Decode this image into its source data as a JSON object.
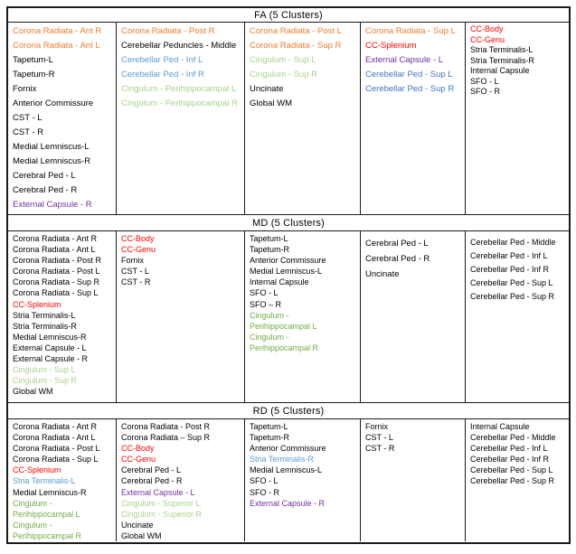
{
  "colors": {
    "black": "#000000",
    "orange": "#ED7D31",
    "red": "#FF0000",
    "purple": "#7030A0",
    "blue": "#4472C4",
    "light_blue": "#5B9BD5",
    "green": "#70AD47",
    "light_green": "#A9D18E"
  },
  "sections": [
    {
      "title": "FA (5 Clusters)",
      "columns": [
        {
          "spacing": "airy",
          "items": [
            {
              "label": "Corona Radiata - Ant R",
              "color": "orange"
            },
            {
              "label": "Corona Radiata - Ant L",
              "color": "orange"
            },
            {
              "label": "Tapetum-L"
            },
            {
              "label": "Tapetum-R"
            },
            {
              "label": "Fornix"
            },
            {
              "label": "Anterior Commissure"
            },
            {
              "label": "CST - L"
            },
            {
              "label": "CST - R"
            },
            {
              "label": "Medial Lemniscus-L"
            },
            {
              "label": "Medial Lemniscus-R"
            },
            {
              "label": "Cerebral Ped - L"
            },
            {
              "label": "Cerebral Ped - R"
            },
            {
              "label": "External Capsule - R",
              "color": "purple"
            }
          ]
        },
        {
          "spacing": "airy",
          "items": [
            {
              "label": "Corona Radiata - Post R",
              "color": "orange"
            },
            {
              "label": "Cerebellar Peduncles - Middle"
            },
            {
              "label": "Cerebellar Ped - Inf L",
              "color": "light_blue"
            },
            {
              "label": "Cerebellar Ped - Inf R",
              "color": "light_blue"
            },
            {
              "label": "Cingulum - Perihippocampal L",
              "color": "light_green"
            },
            {
              "label": "Cingulum - Perihippocampal R",
              "color": "light_green"
            }
          ]
        },
        {
          "spacing": "airy",
          "items": [
            {
              "label": "Corona Radiata - Post L",
              "color": "orange"
            },
            {
              "label": "Corona Radiata - Sup R",
              "color": "orange"
            },
            {
              "label": "Cingulum - Sup L",
              "color": "light_green"
            },
            {
              "label": "Cingulum - Sup R",
              "color": "light_green"
            },
            {
              "label": "Uncinate"
            },
            {
              "label": "Global WM"
            }
          ]
        },
        {
          "spacing": "airy",
          "items": [
            {
              "label": "Corona Radiata - Sup L",
              "color": "orange"
            },
            {
              "label": "CC-Splenium",
              "color": "red"
            },
            {
              "label": "External Capsule - L",
              "color": "purple"
            },
            {
              "label": "Cerebellar Ped - Sup L",
              "color": "blue"
            },
            {
              "label": "Cerebellar Ped - Sup R",
              "color": "blue"
            }
          ]
        },
        {
          "spacing": "compact",
          "items": [
            {
              "label": "CC-Body",
              "color": "red"
            },
            {
              "label": "CC-Genu",
              "color": "red"
            },
            {
              "label": "Stria Terminalis-L"
            },
            {
              "label": "Stria Terminalis-R"
            },
            {
              "label": "Internal Capsule"
            },
            {
              "label": "SFO - L"
            },
            {
              "label": "SFO - R"
            }
          ]
        }
      ]
    },
    {
      "title": "MD (5 Clusters)",
      "columns": [
        {
          "spacing": "tight",
          "items": [
            {
              "label": "Corona Radiata - Ant R"
            },
            {
              "label": "Corona Radiata - Ant L"
            },
            {
              "label": "Corona Radiata - Post R"
            },
            {
              "label": "Corona Radiata - Post L"
            },
            {
              "label": "Corona Radiata - Sup R"
            },
            {
              "label": "Corona Radiata - Sup L"
            },
            {
              "label": "CC-Splenium",
              "color": "red"
            },
            {
              "label": "Stria Terminalis-L"
            },
            {
              "label": "Stria Terminalis-R"
            },
            {
              "label": "Medial Lemniscus-R"
            },
            {
              "label": "External Capsule - L"
            },
            {
              "label": "External Capsule - R"
            },
            {
              "label": "Cingulum - Sup L",
              "color": "light_green"
            },
            {
              "label": "Cingulum - Sup R",
              "color": "light_green"
            },
            {
              "label": "Global WM"
            }
          ]
        },
        {
          "spacing": "tight",
          "items": [
            {
              "label": "CC-Body",
              "color": "red"
            },
            {
              "label": "CC-Genu",
              "color": "red"
            },
            {
              "label": "Fornix"
            },
            {
              "label": "CST - L"
            },
            {
              "label": "CST - R"
            }
          ]
        },
        {
          "spacing": "tight",
          "items": [
            {
              "label": "Tapetum-L"
            },
            {
              "label": "Tapetum-R"
            },
            {
              "label": "Anterior Commissure"
            },
            {
              "label": "Medial Lemniscus-L"
            },
            {
              "label": "Internal Capsule"
            },
            {
              "label": "SFO - L"
            },
            {
              "label": "SFO – R"
            },
            {
              "label": "Cingulum -\nPerihippocampal L",
              "color": "green",
              "wrap": true
            },
            {
              "label": "Cingulum -\nPerihippocampal R",
              "color": "green",
              "wrap": true
            }
          ]
        },
        {
          "spacing": "loose",
          "items": [
            {
              "label": "Cerebral Ped - L"
            },
            {
              "label": "Cerebral Ped - R"
            },
            {
              "label": "Uncinate"
            }
          ]
        },
        {
          "spacing": "medium",
          "items": [
            {
              "label": "Cerebellar Ped - Middle"
            },
            {
              "label": "Cerebellar Ped - Inf L"
            },
            {
              "label": "Cerebellar Ped - Inf R"
            },
            {
              "label": "Cerebellar Ped - Sup L"
            },
            {
              "label": "Cerebellar Ped - Sup R"
            }
          ]
        }
      ]
    },
    {
      "title": "RD (5 Clusters)",
      "columns": [
        {
          "spacing": "tight",
          "items": [
            {
              "label": "Corona Radiata - Ant R"
            },
            {
              "label": "Corona Radiata - Ant L"
            },
            {
              "label": "Corona Radiata - Post L"
            },
            {
              "label": "Corona Radiata - Sup L"
            },
            {
              "label": "CC-Splenium",
              "color": "red"
            },
            {
              "label": "Stria Terminalis-L",
              "color": "light_blue"
            },
            {
              "label": "Medial Lemniscus-R"
            },
            {
              "label": "Cingulum -\nPerihippocampal L",
              "color": "green",
              "wrap": true
            },
            {
              "label": "Cingulum -\nPerihippocampal R",
              "color": "green",
              "wrap": true
            }
          ]
        },
        {
          "spacing": "tight",
          "items": [
            {
              "label": "Corona Radiata - Post R"
            },
            {
              "label": "Corona Radiata – Sup R"
            },
            {
              "label": "CC-Body",
              "color": "red"
            },
            {
              "label": "CC-Genu",
              "color": "red"
            },
            {
              "label": "Cerebral Ped - L"
            },
            {
              "label": "Cerebral Ped - R"
            },
            {
              "label": "External Capsule - L",
              "color": "purple"
            },
            {
              "label": "Cingulum - Superior L",
              "color": "light_green"
            },
            {
              "label": "Cingulum - Superior R",
              "color": "light_green"
            },
            {
              "label": "Uncinate"
            },
            {
              "label": "Global WM"
            }
          ]
        },
        {
          "spacing": "tight",
          "items": [
            {
              "label": "Tapetum-L"
            },
            {
              "label": "Tapetum-R"
            },
            {
              "label": "Anterior Commissure"
            },
            {
              "label": "Stria Terminalis-R",
              "color": "light_blue"
            },
            {
              "label": "Medial Lemniscus-L"
            },
            {
              "label": "SFO - L"
            },
            {
              "label": "SFO - R"
            },
            {
              "label": "External Capsule - R",
              "color": "purple"
            }
          ]
        },
        {
          "spacing": "tight",
          "items": [
            {
              "label": "Fornix"
            },
            {
              "label": "CST - L"
            },
            {
              "label": "CST - R"
            }
          ]
        },
        {
          "spacing": "tight",
          "items": [
            {
              "label": "Internal Capsule"
            },
            {
              "label": "Cerebellar Ped - Middle"
            },
            {
              "label": "Cerebellar Ped - Inf L"
            },
            {
              "label": "Cerebellar Ped - Inf R"
            },
            {
              "label": "Cerebellar Ped - Sup L"
            },
            {
              "label": "Cerebellar Ped - Sup R"
            }
          ]
        }
      ]
    }
  ]
}
